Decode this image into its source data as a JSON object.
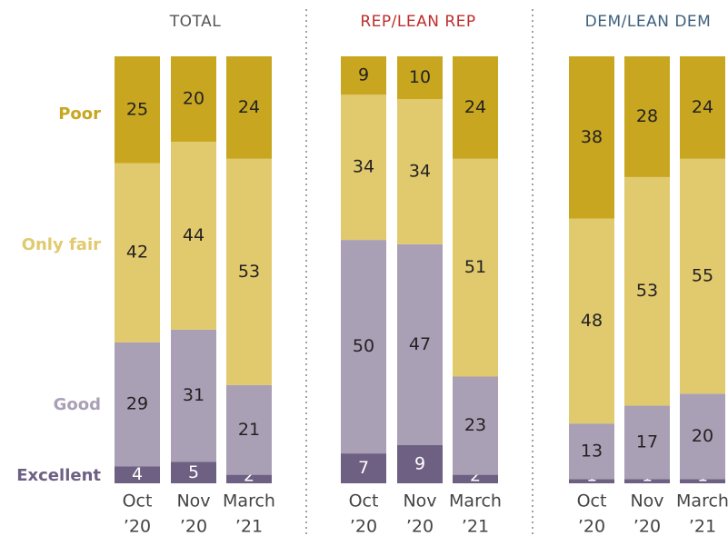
{
  "chart_data": {
    "type": "bar",
    "stacked": true,
    "ylim": [
      0,
      100
    ],
    "legend": [
      {
        "name": "Excellent",
        "color": "#6e6083"
      },
      {
        "name": "Good",
        "color": "#aaa0b5"
      },
      {
        "name": "Only fair",
        "color": "#e1c96e"
      },
      {
        "name": "Poor",
        "color": "#c9a620"
      }
    ],
    "label_colors": {
      "Excellent": "#ffffff",
      "Good": "#222222",
      "Only fair": "#222222",
      "Poor": "#222222"
    },
    "legend_colors": {
      "Excellent": "#6e6083",
      "Good": "#aaa0b5",
      "Only fair": "#e1c96e",
      "Poor": "#c9a620"
    },
    "panels": [
      {
        "title": "TOTAL",
        "title_color": "#555555",
        "categories": [
          [
            "Oct",
            "’20"
          ],
          [
            "Nov",
            "’20"
          ],
          [
            "March",
            "’21"
          ]
        ],
        "series": [
          {
            "name": "Excellent",
            "values": [
              4,
              5,
              2
            ]
          },
          {
            "name": "Good",
            "values": [
              29,
              31,
              21
            ]
          },
          {
            "name": "Only fair",
            "values": [
              42,
              44,
              53
            ]
          },
          {
            "name": "Poor",
            "values": [
              25,
              20,
              24
            ]
          }
        ]
      },
      {
        "title": "REP/LEAN REP",
        "title_color": "#bf2d2d",
        "categories": [
          [
            "Oct",
            "’20"
          ],
          [
            "Nov",
            "’20"
          ],
          [
            "March",
            "’21"
          ]
        ],
        "series": [
          {
            "name": "Excellent",
            "values": [
              7,
              9,
              2
            ]
          },
          {
            "name": "Good",
            "values": [
              50,
              47,
              23
            ]
          },
          {
            "name": "Only fair",
            "values": [
              34,
              34,
              51
            ]
          },
          {
            "name": "Poor",
            "values": [
              9,
              10,
              24
            ]
          }
        ]
      },
      {
        "title": "DEM/LEAN DEM",
        "title_color": "#3e5f7d",
        "categories": [
          [
            "Oct",
            "’20"
          ],
          [
            "Nov",
            "’20"
          ],
          [
            "March",
            "’21"
          ]
        ],
        "series": [
          {
            "name": "Excellent",
            "values": [
              1,
              1,
              1
            ]
          },
          {
            "name": "Good",
            "values": [
              13,
              17,
              20
            ]
          },
          {
            "name": "Only fair",
            "values": [
              48,
              53,
              55
            ]
          },
          {
            "name": "Poor",
            "values": [
              38,
              28,
              24
            ]
          }
        ]
      }
    ]
  }
}
